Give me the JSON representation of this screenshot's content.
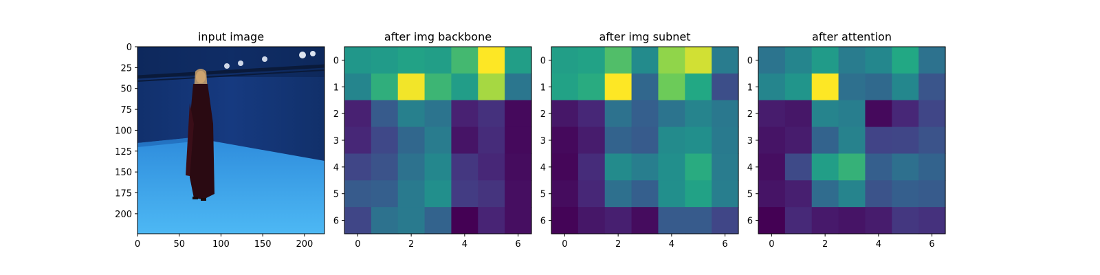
{
  "chart_data": [
    {
      "type": "image",
      "title": "input image",
      "xlim": [
        0,
        224
      ],
      "ylim": [
        224,
        0
      ],
      "xticks": [
        0,
        50,
        100,
        150,
        200
      ],
      "yticks": [
        0,
        25,
        50,
        75,
        100,
        125,
        150,
        175,
        200
      ]
    },
    {
      "type": "heatmap",
      "title": "after img backbone",
      "colormap": "viridis",
      "xticks": [
        0,
        2,
        4,
        6
      ],
      "yticks": [
        0,
        1,
        2,
        3,
        4,
        5,
        6
      ],
      "values": [
        [
          0.66,
          0.68,
          0.72,
          0.7,
          0.8,
          1.0,
          0.7
        ],
        [
          0.57,
          0.77,
          0.99,
          0.79,
          0.69,
          0.92,
          0.49
        ],
        [
          0.12,
          0.36,
          0.54,
          0.48,
          0.12,
          0.18,
          0.03
        ],
        [
          0.14,
          0.27,
          0.42,
          0.52,
          0.07,
          0.16,
          0.03
        ],
        [
          0.26,
          0.32,
          0.47,
          0.58,
          0.2,
          0.14,
          0.04
        ],
        [
          0.36,
          0.38,
          0.51,
          0.62,
          0.22,
          0.19,
          0.05
        ],
        [
          0.26,
          0.47,
          0.51,
          0.4,
          0.0,
          0.13,
          0.05
        ]
      ]
    },
    {
      "type": "heatmap",
      "title": "after img subnet",
      "colormap": "viridis",
      "xticks": [
        0,
        2,
        4,
        6
      ],
      "yticks": [
        0,
        1,
        2,
        3,
        4,
        5,
        6
      ],
      "values": [
        [
          0.7,
          0.72,
          0.82,
          0.6,
          0.9,
          0.96,
          0.52
        ],
        [
          0.72,
          0.76,
          1.0,
          0.42,
          0.86,
          0.75,
          0.3
        ],
        [
          0.08,
          0.14,
          0.47,
          0.38,
          0.48,
          0.56,
          0.5
        ],
        [
          0.03,
          0.1,
          0.4,
          0.36,
          0.6,
          0.62,
          0.51
        ],
        [
          0.02,
          0.16,
          0.6,
          0.53,
          0.62,
          0.76,
          0.52
        ],
        [
          0.04,
          0.14,
          0.46,
          0.38,
          0.62,
          0.72,
          0.53
        ],
        [
          0.01,
          0.08,
          0.11,
          0.04,
          0.36,
          0.36,
          0.26
        ]
      ]
    },
    {
      "type": "heatmap",
      "title": "after attention",
      "colormap": "viridis",
      "xticks": [
        0,
        2,
        4,
        6
      ],
      "yticks": [
        0,
        1,
        2,
        3,
        4,
        5,
        6
      ],
      "values": [
        [
          0.48,
          0.57,
          0.68,
          0.52,
          0.58,
          0.75,
          0.47
        ],
        [
          0.57,
          0.65,
          1.0,
          0.46,
          0.43,
          0.58,
          0.33
        ],
        [
          0.1,
          0.08,
          0.56,
          0.53,
          0.03,
          0.14,
          0.26
        ],
        [
          0.07,
          0.1,
          0.4,
          0.55,
          0.25,
          0.26,
          0.32
        ],
        [
          0.05,
          0.28,
          0.7,
          0.78,
          0.38,
          0.46,
          0.4
        ],
        [
          0.07,
          0.11,
          0.44,
          0.56,
          0.32,
          0.38,
          0.36
        ],
        [
          0.0,
          0.15,
          0.09,
          0.07,
          0.1,
          0.2,
          0.18
        ]
      ]
    }
  ]
}
